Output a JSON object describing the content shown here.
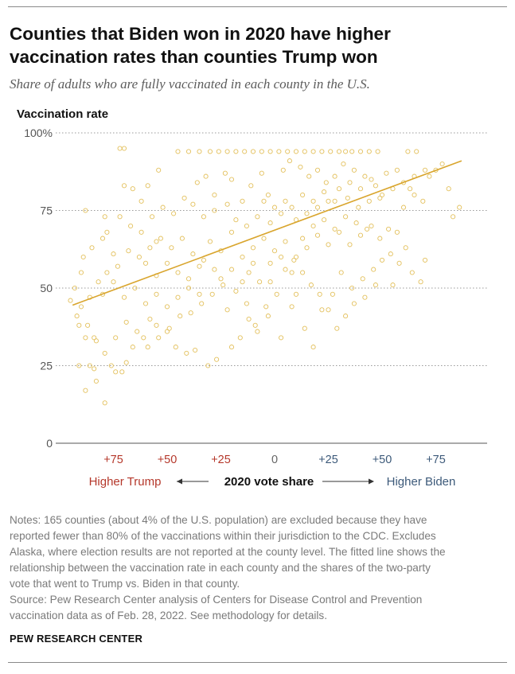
{
  "header": {
    "title_line1": "Counties that Biden won in 2020 have higher",
    "title_line2": "vaccination rates than counties Trump won",
    "subtitle": "Share of adults who are fully vaccinated in each county in the U.S."
  },
  "colors": {
    "trump": "#b5382b",
    "biden": "#3d5a7a",
    "point": "#e3c05c",
    "trendline": "#d9a52d",
    "grid": "#9a9a9a"
  },
  "chart_data": {
    "type": "scatter",
    "ylabel": "Vaccination rate",
    "xlabel": "2020 vote share",
    "x_left_label": "Higher Trump",
    "x_right_label": "Higher Biden",
    "xlim": [
      -100,
      100
    ],
    "ylim": [
      0,
      100
    ],
    "x_ticks": [
      {
        "value": -75,
        "label": "+75",
        "side": "trump"
      },
      {
        "value": -50,
        "label": "+50",
        "side": "trump"
      },
      {
        "value": -25,
        "label": "+25",
        "side": "trump"
      },
      {
        "value": 0,
        "label": "0",
        "side": "neutral"
      },
      {
        "value": 25,
        "label": "+25",
        "side": "biden"
      },
      {
        "value": 50,
        "label": "+50",
        "side": "biden"
      },
      {
        "value": 75,
        "label": "+75",
        "side": "biden"
      }
    ],
    "y_ticks": [
      {
        "value": 0,
        "label": "0"
      },
      {
        "value": 25,
        "label": "25"
      },
      {
        "value": 50,
        "label": "50"
      },
      {
        "value": 75,
        "label": "75"
      },
      {
        "value": 100,
        "label": "100%"
      }
    ],
    "grid": true,
    "trend_line": {
      "x": [
        -94,
        87
      ],
      "y": [
        44.5,
        91
      ]
    },
    "points": [
      [
        -72,
        95
      ],
      [
        -70,
        95
      ],
      [
        -88,
        75
      ],
      [
        -70,
        83
      ],
      [
        -54,
        88
      ],
      [
        -72,
        73
      ],
      [
        -66,
        82
      ],
      [
        -79,
        73
      ],
      [
        -78,
        68
      ],
      [
        -90,
        55
      ],
      [
        -93,
        50
      ],
      [
        -95,
        46
      ],
      [
        -91,
        38
      ],
      [
        -88,
        34
      ],
      [
        -84,
        34
      ],
      [
        -86,
        25
      ],
      [
        -84,
        24
      ],
      [
        -91,
        25
      ],
      [
        -88,
        17
      ],
      [
        -79,
        13
      ],
      [
        -83,
        20
      ],
      [
        -76,
        25
      ],
      [
        -71,
        23
      ],
      [
        -74,
        23
      ],
      [
        -69,
        26
      ],
      [
        -66,
        31
      ],
      [
        -61,
        34
      ],
      [
        -58,
        40
      ],
      [
        -55,
        38
      ],
      [
        -50,
        36
      ],
      [
        -46,
        31
      ],
      [
        -41,
        29
      ],
      [
        -37,
        30
      ],
      [
        -31,
        25
      ],
      [
        -27,
        27
      ],
      [
        -22,
        43
      ],
      [
        -20,
        31
      ],
      [
        -16,
        34
      ],
      [
        -12,
        40
      ],
      [
        -9,
        38
      ],
      [
        -4,
        44
      ],
      [
        -2,
        52
      ],
      [
        3,
        34
      ],
      [
        8,
        44
      ],
      [
        10,
        48
      ],
      [
        14,
        37
      ],
      [
        18,
        31
      ],
      [
        22,
        43
      ],
      [
        27,
        48
      ],
      [
        31,
        55
      ],
      [
        36,
        50
      ],
      [
        41,
        53
      ],
      [
        46,
        56
      ],
      [
        49,
        66
      ],
      [
        53,
        69
      ],
      [
        57,
        68
      ],
      [
        60,
        76
      ],
      [
        63,
        82
      ],
      [
        65,
        80
      ],
      [
        69,
        78
      ],
      [
        72,
        86
      ],
      [
        75,
        88
      ],
      [
        78,
        90
      ],
      [
        81,
        82
      ],
      [
        83,
        73
      ],
      [
        86,
        76
      ],
      [
        62,
        94
      ],
      [
        66,
        94
      ],
      [
        48,
        94
      ],
      [
        44,
        94
      ],
      [
        40,
        94
      ],
      [
        36,
        94
      ],
      [
        33,
        94
      ],
      [
        30,
        94
      ],
      [
        26,
        94
      ],
      [
        22,
        94
      ],
      [
        18,
        94
      ],
      [
        14,
        94
      ],
      [
        10,
        94
      ],
      [
        6,
        94
      ],
      [
        2,
        94
      ],
      [
        -2,
        94
      ],
      [
        -6,
        94
      ],
      [
        -10,
        94
      ],
      [
        -14,
        94
      ],
      [
        -18,
        94
      ],
      [
        -22,
        94
      ],
      [
        -26,
        94
      ],
      [
        -30,
        94
      ],
      [
        -35,
        94
      ],
      [
        -40,
        94
      ],
      [
        -45,
        94
      ],
      [
        -55,
        65
      ],
      [
        -59,
        83
      ],
      [
        -62,
        78
      ],
      [
        -36,
        84
      ],
      [
        -32,
        86
      ],
      [
        -28,
        80
      ],
      [
        -23,
        87
      ],
      [
        -20,
        85
      ],
      [
        -15,
        78
      ],
      [
        -11,
        83
      ],
      [
        -6,
        87
      ],
      [
        -3,
        80
      ],
      [
        4,
        88
      ],
      [
        7,
        91
      ],
      [
        12,
        89
      ],
      [
        16,
        86
      ],
      [
        20,
        88
      ],
      [
        24,
        84
      ],
      [
        28,
        86
      ],
      [
        32,
        90
      ],
      [
        37,
        88
      ],
      [
        42,
        86
      ],
      [
        47,
        83
      ],
      [
        52,
        87
      ],
      [
        57,
        88
      ],
      [
        45,
        70
      ],
      [
        50,
        59
      ],
      [
        54,
        61
      ],
      [
        58,
        58
      ],
      [
        61,
        63
      ],
      [
        64,
        55
      ],
      [
        68,
        52
      ],
      [
        70,
        59
      ],
      [
        55,
        51
      ],
      [
        47,
        51
      ],
      [
        42,
        47
      ],
      [
        37,
        45
      ],
      [
        33,
        41
      ],
      [
        29,
        37
      ],
      [
        25,
        43
      ],
      [
        21,
        48
      ],
      [
        17,
        51
      ],
      [
        13,
        55
      ],
      [
        9,
        59
      ],
      [
        5,
        56
      ],
      [
        1,
        48
      ],
      [
        -3,
        41
      ],
      [
        -8,
        36
      ],
      [
        -13,
        45
      ],
      [
        -18,
        49
      ],
      [
        -24,
        51
      ],
      [
        -29,
        48
      ],
      [
        -34,
        45
      ],
      [
        -39,
        42
      ],
      [
        -44,
        41
      ],
      [
        -49,
        37
      ],
      [
        -54,
        34
      ],
      [
        -59,
        31
      ],
      [
        -64,
        36
      ],
      [
        -69,
        39
      ],
      [
        -74,
        34
      ],
      [
        -79,
        29
      ],
      [
        -83,
        33
      ],
      [
        -87,
        38
      ],
      [
        -92,
        41
      ],
      [
        -89,
        60
      ],
      [
        -85,
        63
      ],
      [
        -80,
        66
      ],
      [
        -75,
        61
      ],
      [
        -67,
        70
      ],
      [
        -62,
        68
      ],
      [
        -57,
        73
      ],
      [
        -52,
        76
      ],
      [
        -47,
        74
      ],
      [
        -42,
        79
      ],
      [
        -38,
        77
      ],
      [
        -33,
        73
      ],
      [
        -28,
        75
      ],
      [
        -22,
        77
      ],
      [
        -18,
        72
      ],
      [
        -13,
        70
      ],
      [
        -8,
        73
      ],
      [
        -2,
        71
      ],
      [
        3,
        74
      ],
      [
        8,
        76
      ],
      [
        13,
        80
      ],
      [
        18,
        78
      ],
      [
        23,
        81
      ],
      [
        28,
        78
      ],
      [
        34,
        79
      ],
      [
        39,
        76
      ],
      [
        44,
        78
      ],
      [
        49,
        79
      ],
      [
        -30,
        65
      ],
      [
        -25,
        62
      ],
      [
        -20,
        68
      ],
      [
        -15,
        60
      ],
      [
        -10,
        63
      ],
      [
        -5,
        66
      ],
      [
        0,
        62
      ],
      [
        5,
        65
      ],
      [
        10,
        60
      ],
      [
        15,
        63
      ],
      [
        20,
        67
      ],
      [
        25,
        64
      ],
      [
        30,
        68
      ],
      [
        35,
        64
      ],
      [
        40,
        67
      ],
      [
        -12,
        55
      ],
      [
        -7,
        52
      ],
      [
        -2,
        58
      ],
      [
        3,
        60
      ],
      [
        8,
        55
      ],
      [
        13,
        66
      ],
      [
        18,
        70
      ],
      [
        23,
        72
      ],
      [
        28,
        69
      ],
      [
        33,
        73
      ],
      [
        38,
        71
      ],
      [
        43,
        69
      ],
      [
        -60,
        58
      ],
      [
        -55,
        54
      ],
      [
        -50,
        58
      ],
      [
        -45,
        55
      ],
      [
        -40,
        53
      ],
      [
        -35,
        57
      ],
      [
        -80,
        48
      ],
      [
        -75,
        52
      ],
      [
        -70,
        47
      ],
      [
        -65,
        50
      ],
      [
        -60,
        45
      ],
      [
        -55,
        48
      ],
      [
        -50,
        44
      ],
      [
        -45,
        47
      ],
      [
        -40,
        50
      ],
      [
        -35,
        48
      ],
      [
        -68,
        62
      ],
      [
        -63,
        60
      ],
      [
        -58,
        63
      ],
      [
        -53,
        66
      ],
      [
        -48,
        63
      ],
      [
        -43,
        66
      ],
      [
        -38,
        61
      ],
      [
        -33,
        59
      ],
      [
        -28,
        56
      ],
      [
        -25,
        53
      ],
      [
        -20,
        56
      ],
      [
        -15,
        52
      ],
      [
        -10,
        58
      ],
      [
        -73,
        57
      ],
      [
        -78,
        55
      ],
      [
        -82,
        52
      ],
      [
        -86,
        47
      ],
      [
        -90,
        44
      ],
      [
        5,
        78
      ],
      [
        10,
        72
      ],
      [
        0,
        76
      ],
      [
        -5,
        78
      ],
      [
        15,
        74
      ],
      [
        20,
        76
      ],
      [
        25,
        78
      ],
      [
        30,
        82
      ],
      [
        35,
        84
      ],
      [
        40,
        82
      ],
      [
        45,
        85
      ],
      [
        50,
        80
      ],
      [
        55,
        82
      ],
      [
        60,
        84
      ],
      [
        65,
        86
      ],
      [
        70,
        88
      ]
    ]
  },
  "notes": {
    "line1": "Notes: 165 counties (about 4% of the U.S. population) are excluded because they have",
    "line2": "reported fewer than 80% of the vaccinations within their jurisdiction to the CDC. Excludes",
    "line3": "Alaska, where election results are not reported at the county level. The fitted line shows the",
    "line4": "relationship between the vaccination rate in each county and the shares of the two-party",
    "line5": "vote that went to Trump vs. Biden in that county.",
    "line6": "Source: Pew Research Center analysis of Centers for Disease Control and Prevention",
    "line7": "vaccination data as of Feb. 28, 2022. See methodology for details."
  },
  "footer": {
    "brand": "PEW RESEARCH CENTER"
  }
}
